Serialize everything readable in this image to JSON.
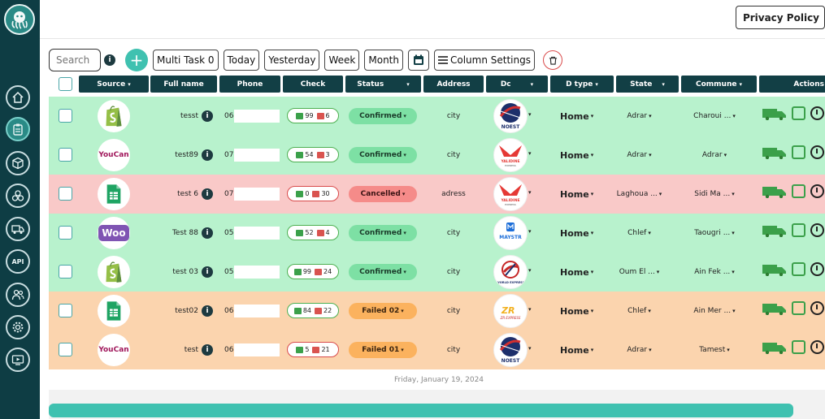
{
  "topbar": {
    "privacy_label": "Privacy Policy"
  },
  "toolbar": {
    "search_placeholder": "Search",
    "info_label": "i",
    "plus_label": "+",
    "multi_task_label": "Multi Task 0",
    "today_label": "Today",
    "yesterday_label": "Yesterday",
    "week_label": "Week",
    "month_label": "Month",
    "column_settings_label": "Column Settings"
  },
  "sidebar": {
    "items": [
      {
        "icon": "home-icon"
      },
      {
        "icon": "clipboard-icon",
        "active": true
      },
      {
        "icon": "box-icon"
      },
      {
        "icon": "cubes-icon"
      },
      {
        "icon": "truck-icon"
      },
      {
        "icon": "api-icon",
        "label": "API"
      },
      {
        "icon": "users-icon"
      },
      {
        "icon": "gear-icon"
      },
      {
        "icon": "video-icon"
      }
    ]
  },
  "table": {
    "columns": [
      {
        "label": "Source",
        "sortable": true
      },
      {
        "label": "Full name",
        "sortable": false
      },
      {
        "label": "Phone",
        "sortable": false
      },
      {
        "label": "Check",
        "sortable": false
      },
      {
        "label": "Status",
        "sortable": true
      },
      {
        "label": "Address",
        "sortable": false
      },
      {
        "label": "Dc",
        "sortable": true
      },
      {
        "label": "D type",
        "sortable": true
      },
      {
        "label": "State",
        "sortable": true
      },
      {
        "label": "Commune",
        "sortable": true
      },
      {
        "label": "Actions",
        "sortable": false
      }
    ],
    "rows": [
      {
        "color": "green",
        "source": "shopify",
        "name": "tesst",
        "phone": "06",
        "ok": "99",
        "ko": "6",
        "check_color": "green",
        "status": "Confirmed",
        "status_type": "confirmed",
        "address": "city",
        "dc": "noest",
        "dtype": "Home",
        "state": "Adrar",
        "commune": "Charoui ..."
      },
      {
        "color": "green",
        "source": "youcan",
        "name": "test89",
        "phone": "07",
        "ok": "54",
        "ko": "3",
        "check_color": "green",
        "status": "Confirmed",
        "status_type": "confirmed",
        "address": "city",
        "dc": "yalidine",
        "dtype": "Home",
        "state": "Adrar",
        "commune": "Adrar"
      },
      {
        "color": "red",
        "source": "sheets",
        "name": "test 6",
        "phone": "07",
        "ok": "0",
        "ko": "30",
        "check_color": "red",
        "status": "Cancelled",
        "status_type": "cancelled",
        "address": "adress",
        "dc": "yalidine",
        "dtype": "Home",
        "state": "Laghoua ...",
        "commune": "Sidi Ma ..."
      },
      {
        "color": "green",
        "source": "woo",
        "name": "Test 88",
        "phone": "05",
        "ok": "52",
        "ko": "4",
        "check_color": "green",
        "status": "Confirmed",
        "status_type": "confirmed",
        "address": "city",
        "dc": "maystro",
        "dtype": "Home",
        "state": "Chlef",
        "commune": "Taougri ..."
      },
      {
        "color": "green",
        "source": "shopify",
        "name": "test 03",
        "phone": "05",
        "ok": "99",
        "ko": "24",
        "check_color": "green",
        "status": "Confirmed",
        "status_type": "confirmed",
        "address": "city",
        "dc": "world",
        "dtype": "Home",
        "state": "Oum El ...",
        "commune": "Ain Fek ..."
      },
      {
        "color": "orange",
        "source": "sheets",
        "name": "test02",
        "phone": "06",
        "ok": "84",
        "ko": "22",
        "check_color": "green",
        "status": "Failed 02",
        "status_type": "failed",
        "address": "city",
        "dc": "zr",
        "dtype": "Home",
        "state": "Chlef",
        "commune": "Ain Mer ..."
      },
      {
        "color": "orange",
        "source": "youcan",
        "name": "test",
        "phone": "06",
        "ok": "5",
        "ko": "21",
        "check_color": "red",
        "status": "Failed 01",
        "status_type": "failed",
        "address": "city",
        "dc": "noest",
        "dtype": "Home",
        "state": "Adrar",
        "commune": "Tamest"
      }
    ],
    "date_separator": "Friday, January 19, 2024"
  },
  "logos": {
    "youcan": "YouCan",
    "woo": "Woo",
    "noest": "NOEST",
    "yalidine": "YALIDINE",
    "yalidine_sub": "EXPRESS",
    "maystro": "MAYSTR",
    "world": "WORLD EXPRESS",
    "zr": "ZR EXPRESS"
  },
  "colors": {
    "sidebar": "#0e3d44",
    "header": "#123f45",
    "accent": "#3fc1b0",
    "row_green": "#b8f2cd",
    "row_red": "#f9c9c8",
    "row_orange": "#fbd4ae"
  }
}
